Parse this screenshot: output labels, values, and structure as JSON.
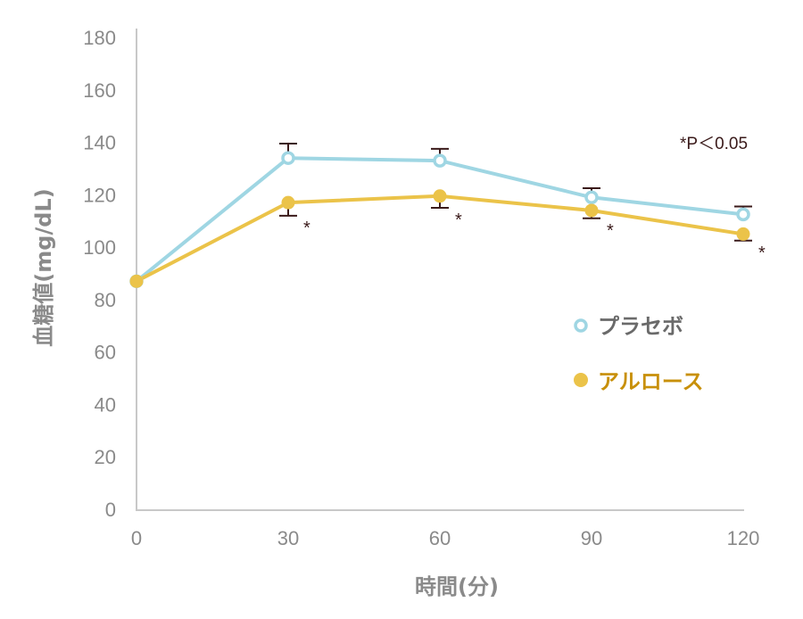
{
  "chart_data": {
    "type": "line",
    "title": "",
    "xlabel": "時間(分)",
    "ylabel": "血糖値(mg/dL)",
    "x": [
      0,
      30,
      60,
      90,
      120
    ],
    "x_ticks": [
      "0",
      "30",
      "60",
      "90",
      "120"
    ],
    "y_ticks": [
      "0",
      "20",
      "40",
      "60",
      "80",
      "100",
      "120",
      "140",
      "160",
      "180"
    ],
    "xlim": [
      0,
      120
    ],
    "ylim": [
      0,
      180
    ],
    "grid": false,
    "legend_position": "right",
    "annotation": "*P＜0.05",
    "significance_marker": "*",
    "series": [
      {
        "name": "プラセボ",
        "color": "#9fd6e3",
        "marker": "open-circle",
        "values": [
          87,
          134,
          133,
          119,
          112.5
        ],
        "error_upper": [
          null,
          139.5,
          137.5,
          122.5,
          115.5
        ]
      },
      {
        "name": "アルロース",
        "color": "#ebc349",
        "text_color": "#c8900a",
        "marker": "filled-circle",
        "values": [
          87,
          117,
          119.5,
          114,
          105
        ],
        "error_lower": [
          null,
          112,
          115,
          111,
          102.5
        ],
        "significant": [
          false,
          true,
          true,
          true,
          true
        ]
      }
    ]
  }
}
